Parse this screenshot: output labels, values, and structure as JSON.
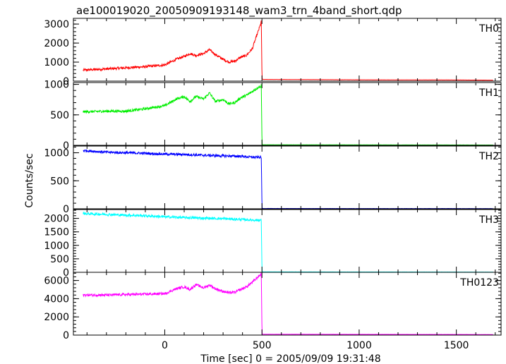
{
  "title": "ae100019020_20050909193148_wam3_trn_4band_short.qdp",
  "xlabel": "Time [sec] 0 = 2005/09/09 19:31:48",
  "ylabel": "Counts/sec",
  "x_ticks": [
    "0",
    "500",
    "1000",
    "1500"
  ],
  "chart_data": {
    "type": "line",
    "title": "ae100019020_20050909193148_wam3_trn_4band_short.qdp",
    "xlabel": "Time [sec] 0 = 2005/09/09 19:31:48",
    "ylabel": "Counts/sec",
    "xlim": [
      -470,
      1730
    ],
    "x_tick_values": [
      0,
      500,
      1000,
      1500
    ],
    "grid": false,
    "legend": "none",
    "panels": [
      {
        "name": "TH0",
        "color": "#ff0000",
        "ylim": [
          0,
          3300
        ],
        "y_ticks": [
          0,
          1000,
          2000,
          3000
        ],
        "x": [
          -420,
          -300,
          -200,
          -100,
          0,
          60,
          100,
          130,
          160,
          200,
          230,
          260,
          300,
          330,
          360,
          390,
          420,
          450,
          480,
          490,
          497,
          500,
          510,
          1000,
          1500,
          1690
        ],
        "y": [
          580,
          640,
          700,
          760,
          850,
          1150,
          1300,
          1450,
          1350,
          1450,
          1650,
          1400,
          1150,
          1000,
          1050,
          1250,
          1350,
          1700,
          2600,
          2900,
          3150,
          100,
          90,
          70,
          60,
          50
        ]
      },
      {
        "name": "TH1",
        "color": "#00ee00",
        "ylim": [
          0,
          1030
        ],
        "y_ticks": [
          0,
          500,
          1000
        ],
        "x": [
          -420,
          -300,
          -200,
          -100,
          0,
          60,
          100,
          130,
          160,
          200,
          230,
          260,
          300,
          330,
          360,
          390,
          420,
          450,
          480,
          490,
          497,
          500,
          510,
          1000,
          1500,
          1690
        ],
        "y": [
          550,
          560,
          560,
          600,
          650,
          760,
          800,
          720,
          800,
          760,
          860,
          720,
          750,
          680,
          700,
          780,
          820,
          880,
          950,
          960,
          990,
          10,
          8,
          7,
          6,
          5
        ]
      },
      {
        "name": "TH2",
        "color": "#0000ff",
        "ylim": [
          0,
          1120
        ],
        "y_ticks": [
          0,
          500,
          1000
        ],
        "x": [
          -420,
          -300,
          -200,
          -100,
          0,
          100,
          200,
          300,
          400,
          450,
          497,
          500,
          510,
          1000,
          1500,
          1690
        ],
        "y": [
          1040,
          1010,
          1000,
          990,
          975,
          970,
          955,
          945,
          935,
          920,
          920,
          8,
          6,
          5,
          5,
          4
        ]
      },
      {
        "name": "TH3",
        "color": "#00ffff",
        "ylim": [
          0,
          2330
        ],
        "y_ticks": [
          0,
          500,
          1000,
          1500,
          2000
        ],
        "x": [
          -420,
          -300,
          -200,
          -100,
          0,
          100,
          200,
          300,
          400,
          450,
          497,
          500,
          510,
          1000,
          1500,
          1690
        ],
        "y": [
          2180,
          2150,
          2120,
          2100,
          2060,
          2030,
          2010,
          1990,
          1960,
          1940,
          1930,
          20,
          15,
          12,
          10,
          8
        ]
      },
      {
        "name": "TH0123",
        "color": "#ff00ff",
        "ylim": [
          0,
          6900
        ],
        "y_ticks": [
          0,
          2000,
          4000,
          6000
        ],
        "x": [
          -420,
          -300,
          -200,
          -100,
          0,
          60,
          100,
          130,
          160,
          200,
          230,
          260,
          300,
          330,
          360,
          390,
          420,
          450,
          480,
          490,
          497,
          500,
          510,
          1000,
          1500,
          1690
        ],
        "y": [
          4400,
          4400,
          4450,
          4500,
          4550,
          5100,
          5300,
          5000,
          5550,
          5200,
          5500,
          5100,
          4800,
          4650,
          4700,
          5000,
          5300,
          5800,
          6400,
          6600,
          6800,
          100,
          90,
          80,
          70,
          60
        ]
      }
    ]
  }
}
